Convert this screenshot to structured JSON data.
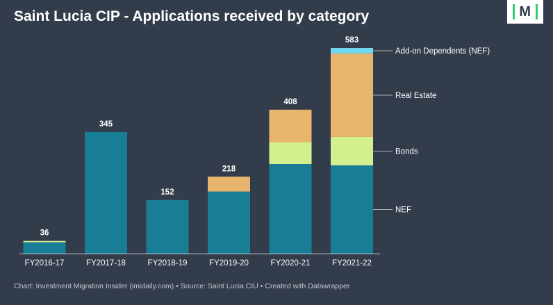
{
  "title": "Saint Lucia CIP - Applications received by category",
  "logo_text": "M",
  "footer": "Chart: Investment Migration Insider (imidaily.com) • Source: Saint Lucia CIU • Created with Datawrapper",
  "colors": {
    "NEF": "#177e95",
    "Bonds": "#d4ef8e",
    "Real Estate": "#e8b56c",
    "Add-on Dependents (NEF)": "#71d7ef"
  },
  "chart_data": {
    "type": "bar",
    "stacked": true,
    "categories": [
      "FY2016-17",
      "FY2017-18",
      "FY2018-19",
      "FY2019-20",
      "FY2020-21",
      "FY2021-22"
    ],
    "totals": [
      36,
      345,
      152,
      218,
      408,
      583
    ],
    "series": [
      {
        "name": "NEF",
        "values": [
          32,
          345,
          152,
          176,
          254,
          250
        ]
      },
      {
        "name": "Bonds",
        "values": [
          4,
          0,
          0,
          0,
          62,
          81
        ]
      },
      {
        "name": "Real Estate",
        "values": [
          0,
          0,
          0,
          42,
          92,
          236
        ]
      },
      {
        "name": "Add-on Dependents (NEF)",
        "values": [
          0,
          0,
          0,
          0,
          0,
          16
        ]
      }
    ],
    "ylim": [
      0,
      583
    ],
    "legend": "right, inline labels"
  }
}
